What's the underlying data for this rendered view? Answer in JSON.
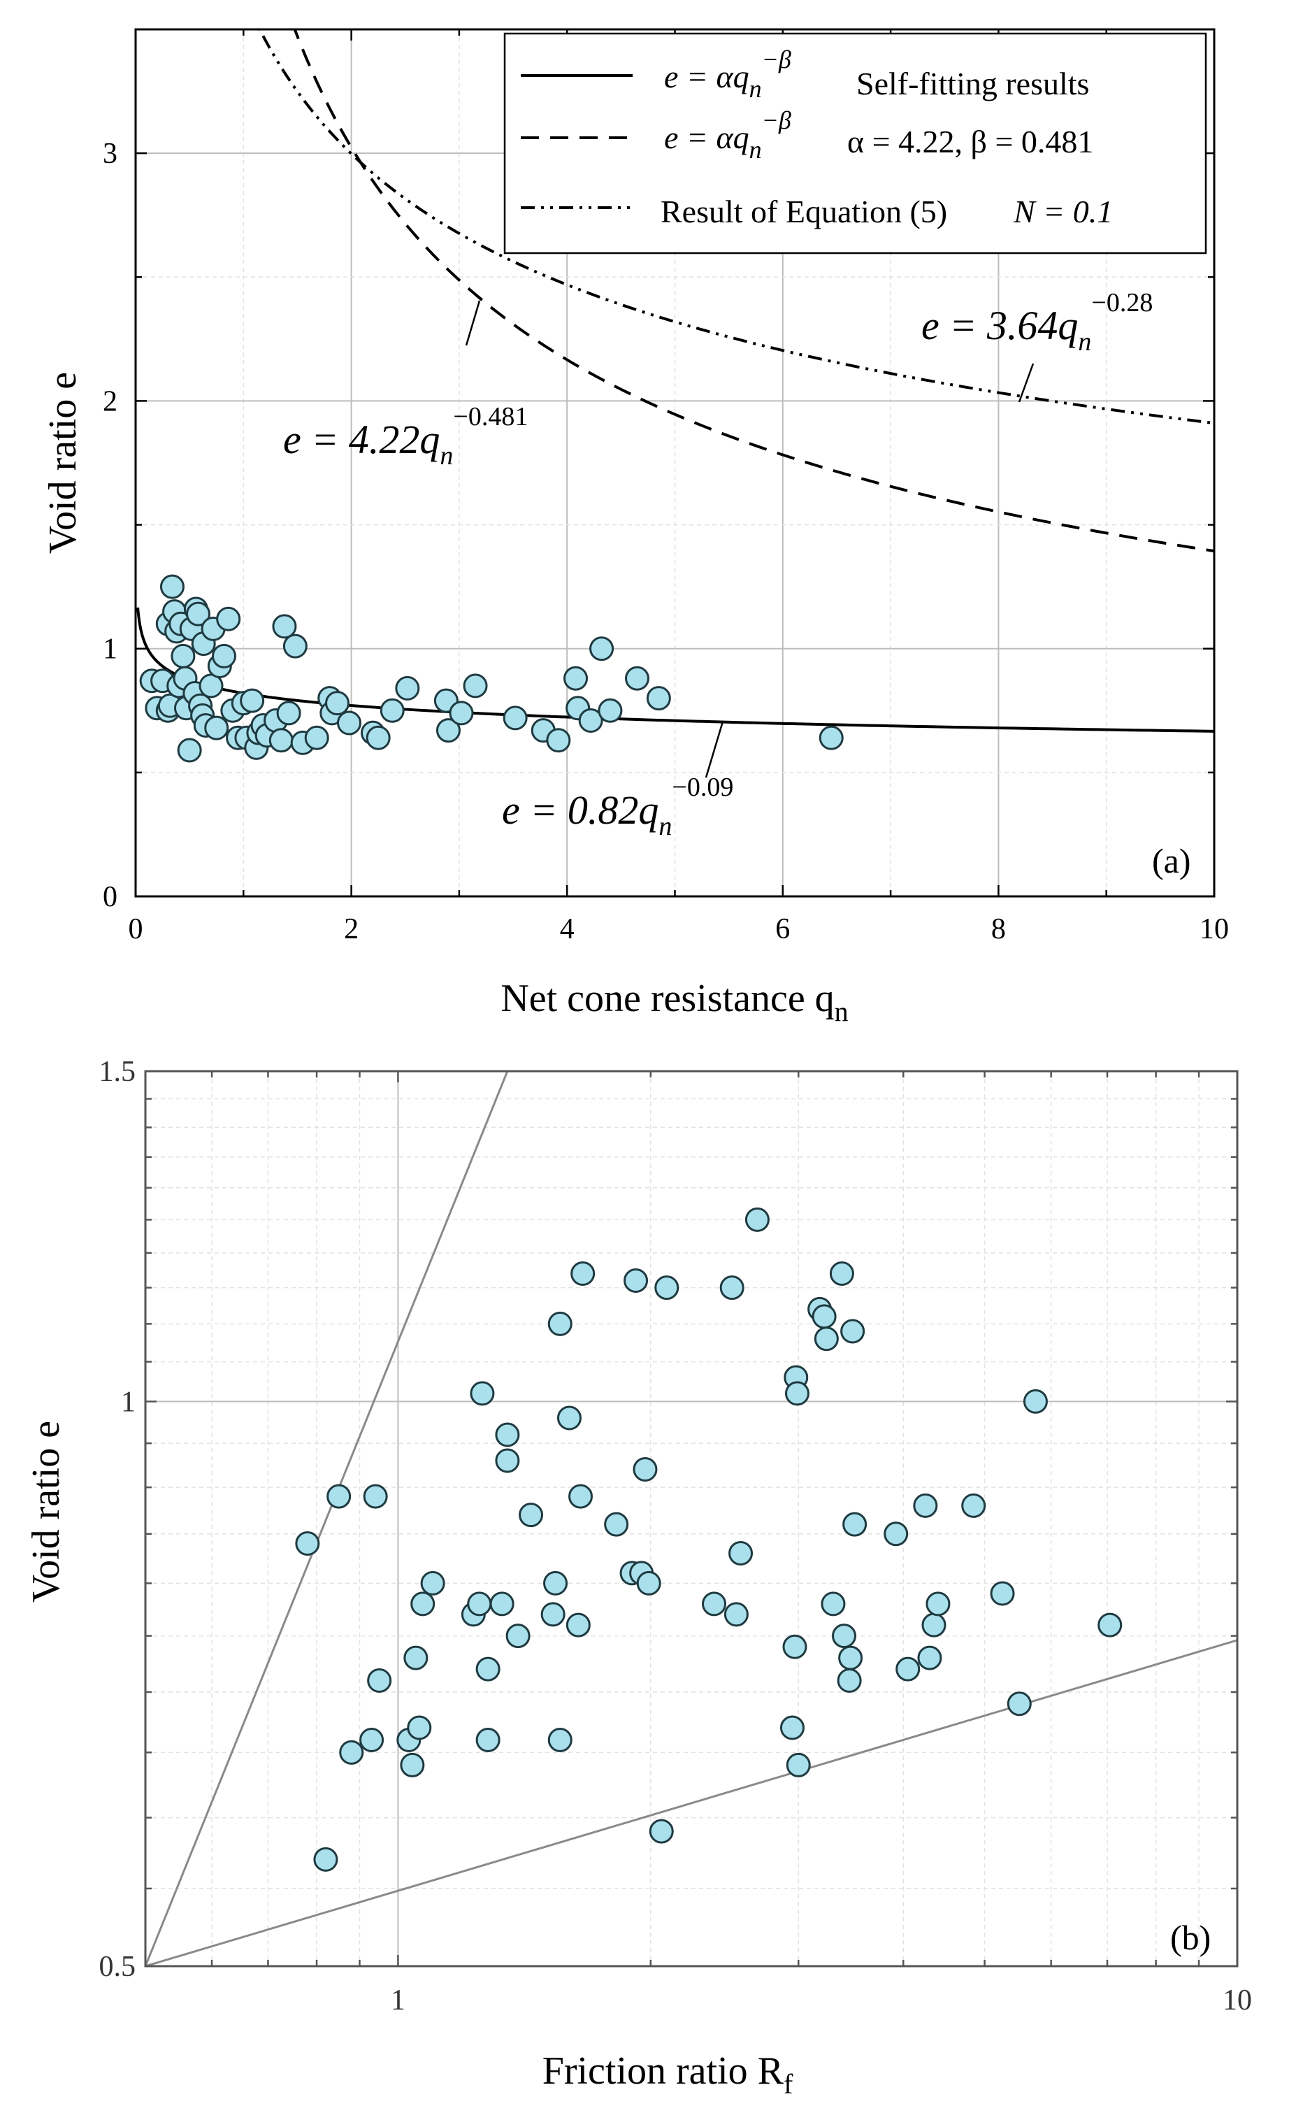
{
  "chart_data": [
    {
      "type": "scatter",
      "panel_label": "(a)",
      "xlabel": "Net cone resistance q",
      "xlabel_sub": "n",
      "ylabel": "Void ratio e",
      "xlim": [
        0,
        10
      ],
      "ylim": [
        0,
        3.5
      ],
      "x_ticks": [
        "0",
        "2",
        "4",
        "6",
        "8",
        "10"
      ],
      "x_tick_values": [
        0,
        2,
        4,
        6,
        8,
        10
      ],
      "y_ticks": [
        "0",
        "1",
        "2",
        "3"
      ],
      "y_tick_values": [
        0,
        1,
        2,
        3
      ],
      "grid": true,
      "legend": [
        {
          "label": "e = αq_n^−β   Self-fitting results",
          "style": "solid"
        },
        {
          "label": "e = αq_n^−β   α = 4.22, β = 0.481",
          "style": "dashed"
        },
        {
          "label": "Result of Equation (5)   N = 0.1",
          "style": "dash-dot-dot"
        }
      ],
      "legend_parts": {
        "eq_lhs": "e = αq",
        "eq_sub": "n",
        "eq_sup": "−β",
        "row1_note": "Self-fitting results",
        "row2_note": "α = 4.22, β = 0.481",
        "row3_text": "Result of Equation (5)",
        "row3_note": "N = 0.1"
      },
      "series": [
        {
          "name": "Self-fitting results",
          "style": "solid",
          "alpha": 0.82,
          "beta": 0.09
        },
        {
          "name": "α = 4.22, β = 0.481",
          "style": "dashed",
          "alpha": 4.22,
          "beta": 0.481
        },
        {
          "name": "Result of Equation (5) N = 0.1",
          "style": "dash-dot-dot",
          "alpha": 3.64,
          "beta": 0.28
        }
      ],
      "annotations": [
        {
          "lhs": "e = 4.22q",
          "sub": "n",
          "sup": "−0.481"
        },
        {
          "lhs": "e = 3.64q",
          "sub": "n",
          "sup": "−0.28"
        },
        {
          "lhs": "e = 0.82q",
          "sub": "n",
          "sup": "−0.09"
        }
      ],
      "points": [
        [
          0.15,
          0.87
        ],
        [
          0.2,
          0.76
        ],
        [
          0.25,
          0.87
        ],
        [
          0.3,
          1.1
        ],
        [
          0.3,
          0.75
        ],
        [
          0.32,
          0.77
        ],
        [
          0.34,
          1.25
        ],
        [
          0.36,
          1.15
        ],
        [
          0.38,
          1.07
        ],
        [
          0.4,
          0.85
        ],
        [
          0.42,
          1.1
        ],
        [
          0.44,
          0.97
        ],
        [
          0.46,
          0.88
        ],
        [
          0.47,
          0.76
        ],
        [
          0.5,
          0.59
        ],
        [
          0.52,
          1.08
        ],
        [
          0.55,
          0.82
        ],
        [
          0.56,
          1.16
        ],
        [
          0.58,
          1.14
        ],
        [
          0.6,
          0.77
        ],
        [
          0.62,
          0.73
        ],
        [
          0.63,
          1.02
        ],
        [
          0.65,
          0.69
        ],
        [
          0.7,
          0.85
        ],
        [
          0.72,
          1.08
        ],
        [
          0.75,
          0.68
        ],
        [
          0.78,
          0.93
        ],
        [
          0.82,
          0.97
        ],
        [
          0.86,
          1.12
        ],
        [
          0.9,
          0.75
        ],
        [
          0.95,
          0.64
        ],
        [
          1.0,
          0.78
        ],
        [
          1.03,
          0.64
        ],
        [
          1.08,
          0.79
        ],
        [
          1.12,
          0.6
        ],
        [
          1.14,
          0.66
        ],
        [
          1.18,
          0.69
        ],
        [
          1.22,
          0.65
        ],
        [
          1.3,
          0.71
        ],
        [
          1.35,
          0.63
        ],
        [
          1.38,
          1.09
        ],
        [
          1.42,
          0.74
        ],
        [
          1.48,
          1.01
        ],
        [
          1.55,
          0.62
        ],
        [
          1.68,
          0.64
        ],
        [
          1.8,
          0.8
        ],
        [
          1.82,
          0.74
        ],
        [
          1.87,
          0.78
        ],
        [
          1.98,
          0.7
        ],
        [
          2.2,
          0.66
        ],
        [
          2.25,
          0.64
        ],
        [
          2.38,
          0.75
        ],
        [
          2.52,
          0.84
        ],
        [
          2.88,
          0.79
        ],
        [
          2.9,
          0.67
        ],
        [
          3.02,
          0.74
        ],
        [
          3.15,
          0.85
        ],
        [
          3.52,
          0.72
        ],
        [
          3.78,
          0.67
        ],
        [
          3.92,
          0.63
        ],
        [
          4.08,
          0.88
        ],
        [
          4.1,
          0.76
        ],
        [
          4.22,
          0.71
        ],
        [
          4.32,
          1.0
        ],
        [
          4.4,
          0.75
        ],
        [
          4.65,
          0.88
        ],
        [
          4.85,
          0.8
        ],
        [
          6.45,
          0.64
        ]
      ]
    },
    {
      "type": "scatter",
      "panel_label": "(b)",
      "xlabel": "Friction ratio R",
      "xlabel_sub": "f",
      "ylabel": "Void ratio e",
      "xscale": "log",
      "yscale": "log",
      "xlim": [
        0.5,
        10
      ],
      "ylim": [
        0.5,
        1.5
      ],
      "x_ticks": [
        "1",
        "10"
      ],
      "x_tick_values": [
        1,
        10
      ],
      "y_ticks": [
        "0.5",
        "1",
        "1.5"
      ],
      "y_tick_values": [
        0.5,
        1,
        1.5
      ],
      "grid": true,
      "bounds": [
        {
          "from": [
            0.5,
            0.5
          ],
          "to": [
            1.35,
            1.5
          ]
        },
        {
          "from": [
            0.5,
            0.5
          ],
          "to": [
            10,
            0.746
          ]
        }
      ],
      "points": [
        [
          0.78,
          0.84
        ],
        [
          0.82,
          0.57
        ],
        [
          0.85,
          0.89
        ],
        [
          0.88,
          0.65
        ],
        [
          0.93,
          0.66
        ],
        [
          0.94,
          0.89
        ],
        [
          0.95,
          0.71
        ],
        [
          1.03,
          0.66
        ],
        [
          1.04,
          0.64
        ],
        [
          1.05,
          0.73
        ],
        [
          1.06,
          0.67
        ],
        [
          1.07,
          0.78
        ],
        [
          1.1,
          0.8
        ],
        [
          1.23,
          0.77
        ],
        [
          1.25,
          0.78
        ],
        [
          1.26,
          1.01
        ],
        [
          1.28,
          0.72
        ],
        [
          1.28,
          0.66
        ],
        [
          1.33,
          0.78
        ],
        [
          1.35,
          0.96
        ],
        [
          1.35,
          0.93
        ],
        [
          1.39,
          0.75
        ],
        [
          1.44,
          0.87
        ],
        [
          1.53,
          0.77
        ],
        [
          1.54,
          0.8
        ],
        [
          1.56,
          1.1
        ],
        [
          1.56,
          0.66
        ],
        [
          1.6,
          0.98
        ],
        [
          1.64,
          0.76
        ],
        [
          1.65,
          0.89
        ],
        [
          1.66,
          1.17
        ],
        [
          1.82,
          0.86
        ],
        [
          1.9,
          0.81
        ],
        [
          1.92,
          1.16
        ],
        [
          1.95,
          0.81
        ],
        [
          1.97,
          0.92
        ],
        [
          1.99,
          0.8
        ],
        [
          2.06,
          0.59
        ],
        [
          2.09,
          1.15
        ],
        [
          2.38,
          0.78
        ],
        [
          2.5,
          1.15
        ],
        [
          2.53,
          0.77
        ],
        [
          2.56,
          0.83
        ],
        [
          2.68,
          1.25
        ],
        [
          2.95,
          0.67
        ],
        [
          2.97,
          0.74
        ],
        [
          2.98,
          1.03
        ],
        [
          2.99,
          1.01
        ],
        [
          3.0,
          0.64
        ],
        [
          3.18,
          1.12
        ],
        [
          3.22,
          1.11
        ],
        [
          3.24,
          1.08
        ],
        [
          3.3,
          0.78
        ],
        [
          3.38,
          1.17
        ],
        [
          3.4,
          0.75
        ],
        [
          3.45,
          0.71
        ],
        [
          3.46,
          0.73
        ],
        [
          3.48,
          1.09
        ],
        [
          3.5,
          0.86
        ],
        [
          3.92,
          0.85
        ],
        [
          4.05,
          0.72
        ],
        [
          4.25,
          0.88
        ],
        [
          4.3,
          0.73
        ],
        [
          4.35,
          0.76
        ],
        [
          4.4,
          0.78
        ],
        [
          4.85,
          0.88
        ],
        [
          5.25,
          0.79
        ],
        [
          5.5,
          0.69
        ],
        [
          5.75,
          1.0
        ],
        [
          7.05,
          0.76
        ]
      ]
    }
  ]
}
